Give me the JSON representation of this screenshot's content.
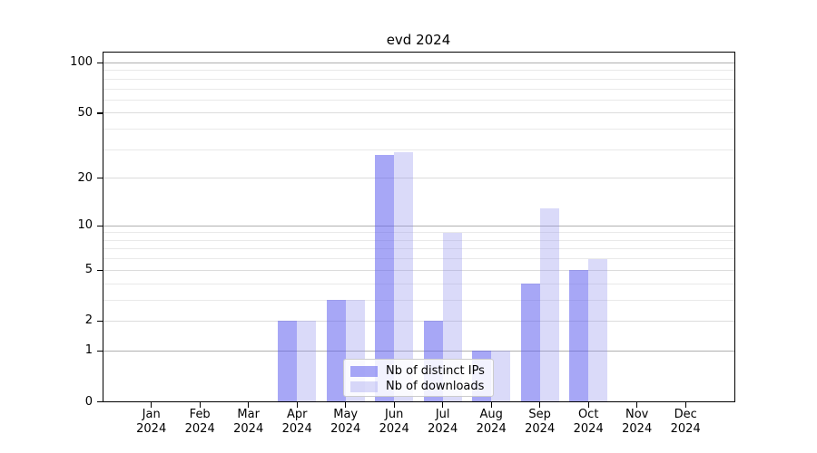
{
  "chart_data": {
    "type": "bar",
    "title": "evd 2024",
    "months": [
      "Jan",
      "Feb",
      "Mar",
      "Apr",
      "May",
      "Jun",
      "Jul",
      "Aug",
      "Sep",
      "Oct",
      "Nov",
      "Dec"
    ],
    "year_label": "2024",
    "series": [
      {
        "name": "Nb of distinct IPs",
        "color": "rgba(95,95,238,0.55)",
        "values": [
          0,
          0,
          0,
          2,
          3,
          28,
          2,
          1,
          4,
          5,
          0,
          0
        ]
      },
      {
        "name": "Nb of downloads",
        "color": "rgba(143,143,238,0.33)",
        "values": [
          0,
          0,
          0,
          2,
          3,
          29,
          9,
          1,
          13,
          6,
          0,
          0
        ]
      }
    ],
    "y_axis": {
      "scale": "log10(1+value)",
      "tick_values": [
        0,
        1,
        2,
        5,
        10,
        20,
        50,
        100
      ],
      "range": [
        0,
        115
      ]
    },
    "gridlines": {
      "emphasis_values": [
        1,
        10,
        100
      ],
      "major_values": [
        2,
        5,
        20,
        50
      ],
      "minor_values": [
        3,
        4,
        6,
        7,
        8,
        9,
        30,
        40,
        60,
        70,
        80,
        90
      ],
      "emphasis_color": "#b0b0b0",
      "major_color": "#dcdcdc",
      "minor_color": "#e9e9e9"
    },
    "legend_position": "lower center",
    "background_color": "#ffffff",
    "axis_color": "#000000"
  }
}
